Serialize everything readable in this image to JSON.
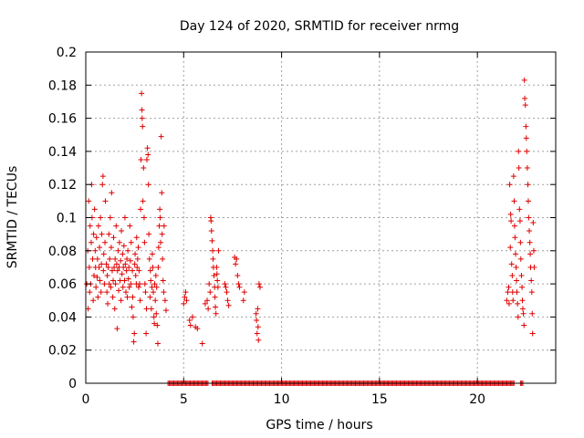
{
  "chart_data": {
    "type": "scatter",
    "title": "Day 124 of 2020, SRMTID for receiver nrmg",
    "xlabel": "GPS time / hours",
    "ylabel": "SRMTID / TECUs",
    "xlim": [
      0,
      24
    ],
    "ylim": [
      0,
      0.2
    ],
    "grid": true,
    "marker": "+",
    "x_ticks": [
      "0",
      "5",
      "10",
      "15",
      "20"
    ],
    "y_ticks": [
      "0",
      "0.02",
      "0.04",
      "0.06",
      "0.08",
      "0.1",
      "0.12",
      "0.14",
      "0.16",
      "0.18",
      "0.2"
    ],
    "series": [
      {
        "name": "SRMTID",
        "color": "#e00000",
        "points": [
          [
            0.05,
            0.06
          ],
          [
            0.1,
            0.08
          ],
          [
            0.12,
            0.045
          ],
          [
            0.15,
            0.11
          ],
          [
            0.18,
            0.07
          ],
          [
            0.2,
            0.055
          ],
          [
            0.22,
            0.095
          ],
          [
            0.25,
            0.06
          ],
          [
            0.28,
            0.085
          ],
          [
            0.3,
            0.12
          ],
          [
            0.32,
            0.1
          ],
          [
            0.35,
            0.075
          ],
          [
            0.38,
            0.05
          ],
          [
            0.4,
            0.09
          ],
          [
            0.42,
            0.065
          ],
          [
            0.45,
            0.105
          ],
          [
            0.48,
            0.08
          ],
          [
            0.5,
            0.07
          ],
          [
            0.52,
            0.058
          ],
          [
            0.55,
            0.088
          ],
          [
            0.58,
            0.064
          ],
          [
            0.6,
            0.075
          ],
          [
            0.62,
            0.052
          ],
          [
            0.65,
            0.095
          ],
          [
            0.68,
            0.07
          ],
          [
            0.7,
            0.082
          ],
          [
            0.72,
            0.062
          ],
          [
            0.75,
            0.1
          ],
          [
            0.78,
            0.055
          ],
          [
            0.8,
            0.072
          ],
          [
            0.82,
            0.09
          ],
          [
            0.85,
            0.12
          ],
          [
            0.88,
            0.125
          ],
          [
            0.9,
            0.068
          ],
          [
            0.92,
            0.078
          ],
          [
            0.95,
            0.06
          ],
          [
            0.98,
            0.085
          ],
          [
            1.0,
            0.11
          ],
          [
            1.05,
            0.072
          ],
          [
            1.08,
            0.055
          ],
          [
            1.1,
            0.065
          ],
          [
            1.12,
            0.048
          ],
          [
            1.15,
            0.07
          ],
          [
            1.18,
            0.09
          ],
          [
            1.2,
            0.06
          ],
          [
            1.22,
            0.075
          ],
          [
            1.25,
            0.1
          ],
          [
            1.28,
            0.058
          ],
          [
            1.3,
            0.082
          ],
          [
            1.32,
            0.115
          ],
          [
            1.35,
            0.068
          ],
          [
            1.38,
            0.052
          ],
          [
            1.4,
            0.062
          ],
          [
            1.42,
            0.088
          ],
          [
            1.45,
            0.07
          ],
          [
            1.48,
            0.045
          ],
          [
            1.5,
            0.075
          ],
          [
            1.52,
            0.06
          ],
          [
            1.55,
            0.095
          ],
          [
            1.58,
            0.072
          ],
          [
            1.6,
            0.033
          ],
          [
            1.62,
            0.068
          ],
          [
            1.65,
            0.08
          ],
          [
            1.68,
            0.056
          ],
          [
            1.7,
            0.07
          ],
          [
            1.72,
            0.085
          ],
          [
            1.75,
            0.062
          ],
          [
            1.78,
            0.074
          ],
          [
            1.8,
            0.05
          ],
          [
            1.82,
            0.092
          ],
          [
            1.85,
            0.066
          ],
          [
            1.88,
            0.078
          ],
          [
            1.9,
            0.058
          ],
          [
            1.92,
            0.07
          ],
          [
            1.95,
            0.083
          ],
          [
            1.98,
            0.062
          ],
          [
            2.0,
            0.1
          ],
          [
            2.02,
            0.072
          ],
          [
            2.05,
            0.055
          ],
          [
            2.08,
            0.068
          ],
          [
            2.1,
            0.075
          ],
          [
            2.12,
            0.052
          ],
          [
            2.15,
            0.08
          ],
          [
            2.18,
            0.063
          ],
          [
            2.2,
            0.07
          ],
          [
            2.22,
            0.058
          ],
          [
            2.25,
            0.095
          ],
          [
            2.28,
            0.074
          ],
          [
            2.3,
            0.06
          ],
          [
            2.32,
            0.085
          ],
          [
            2.35,
            0.046
          ],
          [
            2.38,
            0.068
          ],
          [
            2.4,
            0.052
          ],
          [
            2.42,
            0.04
          ],
          [
            2.45,
            0.025
          ],
          [
            2.48,
            0.03
          ],
          [
            2.5,
            0.072
          ],
          [
            2.52,
            0.078
          ],
          [
            2.55,
            0.065
          ],
          [
            2.58,
            0.06
          ],
          [
            2.6,
            0.088
          ],
          [
            2.62,
            0.07
          ],
          [
            2.65,
            0.075
          ],
          [
            2.68,
            0.082
          ],
          [
            2.7,
            0.058
          ],
          [
            2.72,
            0.068
          ],
          [
            2.75,
            0.06
          ],
          [
            2.78,
            0.05
          ],
          [
            2.8,
            0.105
          ],
          [
            2.82,
            0.135
          ],
          [
            2.85,
            0.175
          ],
          [
            2.87,
            0.165
          ],
          [
            2.88,
            0.16
          ],
          [
            2.9,
            0.155
          ],
          [
            2.92,
            0.11
          ],
          [
            2.95,
            0.13
          ],
          [
            2.98,
            0.1
          ],
          [
            3.0,
            0.085
          ],
          [
            3.02,
            0.06
          ],
          [
            3.05,
            0.055
          ],
          [
            3.08,
            0.03
          ],
          [
            3.1,
            0.045
          ],
          [
            3.12,
            0.135
          ],
          [
            3.15,
            0.142
          ],
          [
            3.18,
            0.138
          ],
          [
            3.2,
            0.12
          ],
          [
            3.22,
            0.09
          ],
          [
            3.25,
            0.075
          ],
          [
            3.28,
            0.052
          ],
          [
            3.3,
            0.068
          ],
          [
            3.32,
            0.062
          ],
          [
            3.35,
            0.045
          ],
          [
            3.38,
            0.058
          ],
          [
            3.4,
            0.078
          ],
          [
            3.42,
            0.07
          ],
          [
            3.45,
            0.055
          ],
          [
            3.48,
            0.04
          ],
          [
            3.5,
            0.036
          ],
          [
            3.52,
            0.06
          ],
          [
            3.55,
            0.05
          ],
          [
            3.58,
            0.065
          ],
          [
            3.6,
            0.042
          ],
          [
            3.62,
            0.058
          ],
          [
            3.65,
            0.035
          ],
          [
            3.68,
            0.024
          ],
          [
            3.7,
            0.07
          ],
          [
            3.72,
            0.082
          ],
          [
            3.75,
            0.095
          ],
          [
            3.78,
            0.105
          ],
          [
            3.8,
            0.1
          ],
          [
            3.82,
            0.085
          ],
          [
            3.85,
            0.149
          ],
          [
            3.88,
            0.115
          ],
          [
            3.9,
            0.09
          ],
          [
            3.92,
            0.075
          ],
          [
            3.95,
            0.062
          ],
          [
            3.98,
            0.055
          ],
          [
            4.0,
            0.095
          ],
          [
            4.05,
            0.05
          ],
          [
            4.1,
            0.044
          ],
          [
            5.0,
            0.048
          ],
          [
            5.05,
            0.052
          ],
          [
            5.1,
            0.055
          ],
          [
            5.15,
            0.05
          ],
          [
            5.3,
            0.038
          ],
          [
            5.35,
            0.035
          ],
          [
            5.45,
            0.04
          ],
          [
            5.6,
            0.034
          ],
          [
            5.7,
            0.033
          ],
          [
            5.95,
            0.024
          ],
          [
            6.1,
            0.048
          ],
          [
            6.2,
            0.05
          ],
          [
            6.25,
            0.045
          ],
          [
            6.3,
            0.06
          ],
          [
            6.35,
            0.055
          ],
          [
            6.38,
            0.1
          ],
          [
            6.4,
            0.098
          ],
          [
            6.42,
            0.092
          ],
          [
            6.45,
            0.086
          ],
          [
            6.48,
            0.08
          ],
          [
            6.5,
            0.075
          ],
          [
            6.52,
            0.07
          ],
          [
            6.55,
            0.065
          ],
          [
            6.58,
            0.058
          ],
          [
            6.6,
            0.052
          ],
          [
            6.62,
            0.046
          ],
          [
            6.65,
            0.042
          ],
          [
            6.68,
            0.07
          ],
          [
            6.7,
            0.066
          ],
          [
            6.72,
            0.062
          ],
          [
            6.75,
            0.058
          ],
          [
            6.78,
            0.08
          ],
          [
            7.1,
            0.06
          ],
          [
            7.15,
            0.058
          ],
          [
            7.2,
            0.055
          ],
          [
            7.25,
            0.05
          ],
          [
            7.3,
            0.047
          ],
          [
            7.6,
            0.076
          ],
          [
            7.65,
            0.072
          ],
          [
            7.7,
            0.075
          ],
          [
            7.75,
            0.065
          ],
          [
            7.8,
            0.06
          ],
          [
            7.85,
            0.058
          ],
          [
            8.05,
            0.05
          ],
          [
            8.1,
            0.055
          ],
          [
            8.7,
            0.042
          ],
          [
            8.72,
            0.038
          ],
          [
            8.75,
            0.03
          ],
          [
            8.78,
            0.045
          ],
          [
            8.8,
            0.034
          ],
          [
            8.82,
            0.026
          ],
          [
            8.85,
            0.06
          ],
          [
            8.9,
            0.058
          ],
          [
            21.5,
            0.05
          ],
          [
            21.55,
            0.055
          ],
          [
            21.6,
            0.058
          ],
          [
            21.62,
            0.048
          ],
          [
            21.65,
            0.12
          ],
          [
            21.68,
            0.082
          ],
          [
            21.7,
            0.102
          ],
          [
            21.72,
            0.098
          ],
          [
            21.75,
            0.072
          ],
          [
            21.78,
            0.065
          ],
          [
            21.8,
            0.055
          ],
          [
            21.82,
            0.05
          ],
          [
            21.85,
            0.125
          ],
          [
            21.88,
            0.11
          ],
          [
            21.9,
            0.095
          ],
          [
            21.92,
            0.088
          ],
          [
            21.95,
            0.078
          ],
          [
            21.98,
            0.07
          ],
          [
            22.0,
            0.062
          ],
          [
            22.02,
            0.055
          ],
          [
            22.05,
            0.048
          ],
          [
            22.08,
            0.04
          ],
          [
            22.1,
            0.14
          ],
          [
            22.12,
            0.13
          ],
          [
            22.15,
            0.105
          ],
          [
            22.18,
            0.098
          ],
          [
            22.2,
            0.085
          ],
          [
            22.22,
            0.075
          ],
          [
            22.25,
            0.065
          ],
          [
            22.28,
            0.058
          ],
          [
            22.3,
            0.05
          ],
          [
            22.32,
            0.045
          ],
          [
            22.35,
            0.042
          ],
          [
            22.38,
            0.035
          ],
          [
            22.4,
            0.183
          ],
          [
            22.42,
            0.172
          ],
          [
            22.45,
            0.168
          ],
          [
            22.48,
            0.155
          ],
          [
            22.5,
            0.148
          ],
          [
            22.52,
            0.14
          ],
          [
            22.55,
            0.13
          ],
          [
            22.58,
            0.12
          ],
          [
            22.6,
            0.11
          ],
          [
            22.62,
            0.1
          ],
          [
            22.65,
            0.092
          ],
          [
            22.68,
            0.085
          ],
          [
            22.7,
            0.078
          ],
          [
            22.72,
            0.07
          ],
          [
            22.75,
            0.062
          ],
          [
            22.78,
            0.055
          ],
          [
            22.8,
            0.042
          ],
          [
            22.82,
            0.03
          ],
          [
            22.85,
            0.097
          ],
          [
            22.88,
            0.08
          ],
          [
            22.9,
            0.07
          ]
        ],
        "zero_spans": [
          [
            4.2,
            6.25
          ],
          [
            6.45,
            21.9
          ],
          [
            22.2,
            22.35
          ]
        ]
      }
    ]
  }
}
